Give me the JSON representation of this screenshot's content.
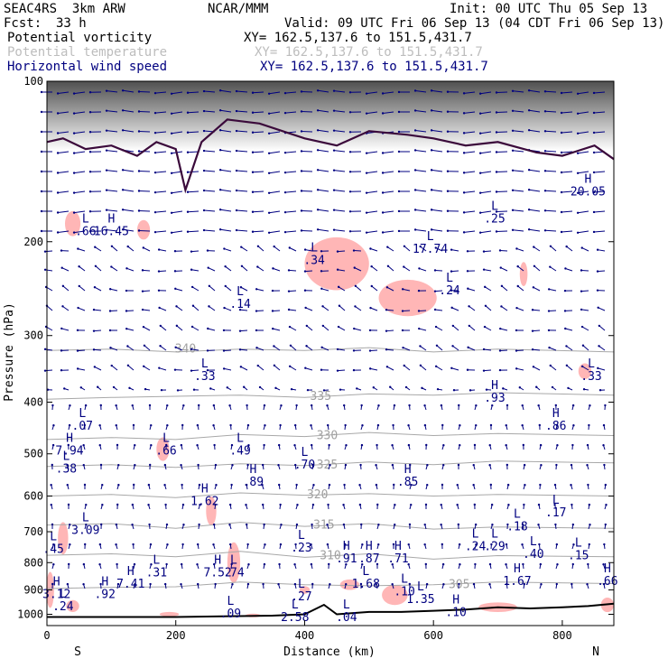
{
  "header": {
    "model": "SEAC4RS  3km ARW",
    "center": "NCAR/MMM",
    "init": "Init: 00 UTC Thu 05 Sep 13",
    "fcst_label": "Fcst:",
    "fcst_value": "33 h",
    "valid": "Valid: 09 UTC Fri 06 Sep 13 (04 CDT Fri 06 Sep 13)"
  },
  "fields": [
    {
      "name": "Potential vorticity",
      "xy": "XY= 162.5,137.6 to 151.5,431.7",
      "color": "#000000"
    },
    {
      "name": "Potential temperature",
      "xy": "XY= 162.5,137.6 to 151.5,431.7",
      "color": "#bdbdbd"
    },
    {
      "name": "Horizontal wind speed",
      "xy": "XY= 162.5,137.6 to 151.5,431.7",
      "color": "#000080"
    }
  ],
  "chart_data": {
    "type": "cross-section",
    "xlabel": "Distance (km)",
    "ylabel": "Pressure (hPa)",
    "xlim": [
      0,
      880
    ],
    "ylim": [
      1050,
      100
    ],
    "y_scale": "log",
    "x_ticks": [
      0,
      200,
      400,
      600,
      800
    ],
    "y_ticks": [
      100,
      200,
      300,
      400,
      500,
      600,
      700,
      800,
      900,
      1000
    ],
    "left_end_label": "S",
    "right_end_label": "N",
    "theta_contours": [
      {
        "label": "340",
        "points": [
          [
            0,
            320
          ],
          [
            100,
            318
          ],
          [
            200,
            322
          ],
          [
            300,
            318
          ],
          [
            400,
            320
          ],
          [
            500,
            316
          ],
          [
            600,
            322
          ],
          [
            700,
            318
          ],
          [
            880,
            322
          ]
        ],
        "label_x": 215,
        "label_p": 318
      },
      {
        "label": "335",
        "points": [
          [
            0,
            395
          ],
          [
            100,
            392
          ],
          [
            200,
            390
          ],
          [
            300,
            388
          ],
          [
            400,
            392
          ],
          [
            500,
            386
          ],
          [
            600,
            388
          ],
          [
            700,
            384
          ],
          [
            880,
            388
          ]
        ],
        "label_x": 425,
        "label_p": 390
      },
      {
        "label": "330",
        "points": [
          [
            0,
            470
          ],
          [
            100,
            466
          ],
          [
            200,
            470
          ],
          [
            300,
            460
          ],
          [
            400,
            464
          ],
          [
            500,
            456
          ],
          [
            600,
            462
          ],
          [
            700,
            458
          ],
          [
            880,
            462
          ]
        ],
        "label_x": 435,
        "label_p": 462
      },
      {
        "label": "325",
        "points": [
          [
            0,
            528
          ],
          [
            100,
            524
          ],
          [
            200,
            530
          ],
          [
            300,
            522
          ],
          [
            400,
            526
          ],
          [
            500,
            518
          ],
          [
            600,
            524
          ],
          [
            700,
            516
          ],
          [
            880,
            520
          ]
        ],
        "label_x": 435,
        "label_p": 524
      },
      {
        "label": "320",
        "points": [
          [
            0,
            600
          ],
          [
            100,
            596
          ],
          [
            200,
            604
          ],
          [
            300,
            592
          ],
          [
            400,
            598
          ],
          [
            500,
            594
          ],
          [
            600,
            600
          ],
          [
            700,
            596
          ],
          [
            880,
            600
          ]
        ],
        "label_x": 420,
        "label_p": 596
      },
      {
        "label": "315",
        "points": [
          [
            0,
            680
          ],
          [
            100,
            676
          ],
          [
            200,
            690
          ],
          [
            300,
            672
          ],
          [
            400,
            684
          ],
          [
            500,
            676
          ],
          [
            600,
            692
          ],
          [
            700,
            686
          ],
          [
            880,
            690
          ]
        ],
        "label_x": 430,
        "label_p": 680
      },
      {
        "label": "310",
        "points": [
          [
            0,
            775
          ],
          [
            100,
            770
          ],
          [
            200,
            780
          ],
          [
            300,
            762
          ],
          [
            400,
            782
          ],
          [
            500,
            770
          ],
          [
            600,
            788
          ],
          [
            700,
            776
          ],
          [
            880,
            780
          ]
        ],
        "label_x": 440,
        "label_p": 776
      },
      {
        "label": "305",
        "points": [
          [
            0,
            895
          ],
          [
            100,
            890
          ],
          [
            200,
            888
          ],
          [
            300,
            870
          ],
          [
            400,
            880
          ],
          [
            500,
            884
          ],
          [
            600,
            880
          ],
          [
            700,
            870
          ],
          [
            880,
            876
          ]
        ],
        "label_x": 640,
        "label_p": 880
      }
    ],
    "pv_line": {
      "points": [
        [
          0,
          130
        ],
        [
          25,
          128
        ],
        [
          60,
          134
        ],
        [
          100,
          132
        ],
        [
          140,
          138
        ],
        [
          170,
          130
        ],
        [
          200,
          134
        ],
        [
          215,
          160
        ],
        [
          240,
          130
        ],
        [
          280,
          118
        ],
        [
          330,
          120
        ],
        [
          400,
          128
        ],
        [
          450,
          132
        ],
        [
          500,
          124
        ],
        [
          560,
          126
        ],
        [
          600,
          128
        ],
        [
          650,
          132
        ],
        [
          700,
          130
        ],
        [
          760,
          136
        ],
        [
          800,
          138
        ],
        [
          850,
          132
        ],
        [
          880,
          140
        ]
      ]
    },
    "surface_line": {
      "points": [
        [
          0,
          1012
        ],
        [
          200,
          1012
        ],
        [
          300,
          1008
        ],
        [
          350,
          1006
        ],
        [
          400,
          1000
        ],
        [
          430,
          960
        ],
        [
          450,
          1000
        ],
        [
          500,
          990
        ],
        [
          550,
          990
        ],
        [
          600,
          985
        ],
        [
          650,
          980
        ],
        [
          700,
          970
        ],
        [
          750,
          975
        ],
        [
          800,
          970
        ],
        [
          840,
          965
        ],
        [
          880,
          955
        ]
      ]
    },
    "extrema": [
      {
        "t": "H",
        "v": "16.45",
        "x": 100,
        "p": 190
      },
      {
        "t": "L",
        "v": ".66",
        "x": 60,
        "p": 190
      },
      {
        "t": "L",
        "v": ".14",
        "x": 300,
        "p": 260
      },
      {
        "t": "L",
        "v": ".34",
        "x": 415,
        "p": 215
      },
      {
        "t": "L",
        "v": "17.74",
        "x": 595,
        "p": 205
      },
      {
        "t": "L",
        "v": ".24",
        "x": 625,
        "p": 245
      },
      {
        "t": "L",
        "v": ".25",
        "x": 695,
        "p": 180
      },
      {
        "t": "H",
        "v": "20.05",
        "x": 840,
        "p": 160
      },
      {
        "t": "L",
        "v": ".33",
        "x": 245,
        "p": 355
      },
      {
        "t": "H",
        "v": ".93",
        "x": 695,
        "p": 390
      },
      {
        "t": "H",
        "v": ".86",
        "x": 790,
        "p": 440
      },
      {
        "t": "L",
        "v": ".33",
        "x": 845,
        "p": 355
      },
      {
        "t": "L",
        "v": ".07",
        "x": 55,
        "p": 440
      },
      {
        "t": "H",
        "v": "7.94",
        "x": 35,
        "p": 490
      },
      {
        "t": "L",
        "v": ".66",
        "x": 185,
        "p": 490
      },
      {
        "t": "L",
        "v": ".49",
        "x": 300,
        "p": 490
      },
      {
        "t": "L",
        "v": ".70",
        "x": 400,
        "p": 520
      },
      {
        "t": "L",
        "v": ".38",
        "x": 30,
        "p": 530
      },
      {
        "t": "H",
        "v": ".89",
        "x": 320,
        "p": 560
      },
      {
        "t": "H",
        "v": ".85",
        "x": 560,
        "p": 560
      },
      {
        "t": "H",
        "v": "1.62",
        "x": 245,
        "p": 610
      },
      {
        "t": "L",
        "v": ".17",
        "x": 790,
        "p": 640
      },
      {
        "t": "L",
        "v": ".18",
        "x": 730,
        "p": 680
      },
      {
        "t": "L",
        "v": "3.09",
        "x": 60,
        "p": 690
      },
      {
        "t": "L",
        "v": ".23",
        "x": 395,
        "p": 745
      },
      {
        "t": "L",
        "v": ".24",
        "x": 665,
        "p": 740
      },
      {
        "t": "L",
        "v": ".29",
        "x": 695,
        "p": 740
      },
      {
        "t": "L",
        "v": ".45",
        "x": 10,
        "p": 750
      },
      {
        "t": "H",
        "v": ".91",
        "x": 465,
        "p": 780
      },
      {
        "t": "H",
        "v": ".87",
        "x": 500,
        "p": 780
      },
      {
        "t": "H",
        "v": ".71",
        "x": 545,
        "p": 780
      },
      {
        "t": "L",
        "v": ".40",
        "x": 755,
        "p": 765
      },
      {
        "t": "L",
        "v": ".15",
        "x": 825,
        "p": 770
      },
      {
        "t": "L",
        "v": ".31",
        "x": 170,
        "p": 830
      },
      {
        "t": "H",
        "v": "7.52",
        "x": 265,
        "p": 830
      },
      {
        "t": "L",
        "v": ".74",
        "x": 290,
        "p": 830
      },
      {
        "t": "H",
        "v": "7.41",
        "x": 130,
        "p": 870
      },
      {
        "t": "H",
        "v": "1.67",
        "x": 730,
        "p": 860
      },
      {
        "t": "H",
        "v": ".66",
        "x": 870,
        "p": 860
      },
      {
        "t": "L",
        "v": "1.68",
        "x": 495,
        "p": 870
      },
      {
        "t": "H",
        "v": ".92",
        "x": 90,
        "p": 910
      },
      {
        "t": "H",
        "v": "3.12",
        "x": 15,
        "p": 910
      },
      {
        "t": "L",
        "v": ".10",
        "x": 555,
        "p": 900
      },
      {
        "t": "L",
        "v": "1.35",
        "x": 580,
        "p": 930
      },
      {
        "t": "L",
        "v": ".27",
        "x": 395,
        "p": 920
      },
      {
        "t": "L",
        "v": ".24",
        "x": 25,
        "p": 960
      },
      {
        "t": "L",
        "v": ".09",
        "x": 285,
        "p": 990
      },
      {
        "t": "L",
        "v": "2.58",
        "x": 385,
        "p": 1005
      },
      {
        "t": "L",
        "v": ".04",
        "x": 465,
        "p": 1005
      },
      {
        "t": "H",
        "v": ".10",
        "x": 635,
        "p": 985
      }
    ],
    "pv_patches": [
      {
        "x": 40,
        "p": 185,
        "rx": 12,
        "rp": 10
      },
      {
        "x": 150,
        "p": 190,
        "rx": 10,
        "rp": 8
      },
      {
        "x": 450,
        "p": 220,
        "rx": 50,
        "rp": 25
      },
      {
        "x": 560,
        "p": 255,
        "rx": 45,
        "rp": 20
      },
      {
        "x": 740,
        "p": 230,
        "rx": 6,
        "rp": 12
      },
      {
        "x": 835,
        "p": 350,
        "rx": 10,
        "rp": 12
      },
      {
        "x": 180,
        "p": 490,
        "rx": 10,
        "rp": 25
      },
      {
        "x": 255,
        "p": 640,
        "rx": 8,
        "rp": 40
      },
      {
        "x": 290,
        "p": 800,
        "rx": 10,
        "rp": 70
      },
      {
        "x": 25,
        "p": 720,
        "rx": 8,
        "rp": 50
      },
      {
        "x": 5,
        "p": 900,
        "rx": 6,
        "rp": 70
      },
      {
        "x": 470,
        "p": 880,
        "rx": 15,
        "rp": 20
      },
      {
        "x": 540,
        "p": 920,
        "rx": 20,
        "rp": 40
      },
      {
        "x": 400,
        "p": 900,
        "rx": 8,
        "rp": 15
      },
      {
        "x": 320,
        "p": 1005,
        "rx": 12,
        "rp": 8
      },
      {
        "x": 700,
        "p": 970,
        "rx": 30,
        "rp": 20
      },
      {
        "x": 870,
        "p": 960,
        "rx": 10,
        "rp": 30
      },
      {
        "x": 190,
        "p": 1000,
        "rx": 15,
        "rp": 10
      },
      {
        "x": 40,
        "p": 965,
        "rx": 10,
        "rp": 25
      }
    ]
  }
}
